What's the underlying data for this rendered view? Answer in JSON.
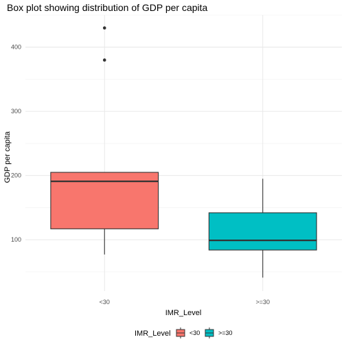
{
  "chart_data": {
    "type": "box",
    "title": "Box plot showing distribution of GDP per capita",
    "xlabel": "IMR_Level",
    "ylabel": "GDP per capita",
    "categories": [
      "<30",
      ">=30"
    ],
    "ylim": [
      20,
      450
    ],
    "yticks": [
      100,
      200,
      300,
      400
    ],
    "grid": true,
    "boxes": [
      {
        "category": "<30",
        "whisker_low": 77,
        "q1": 117,
        "median": 191,
        "q3": 205,
        "whisker_high": 205,
        "outliers": [
          380,
          430
        ],
        "color": "#F8766D"
      },
      {
        "category": ">=30",
        "whisker_low": 41,
        "q1": 84,
        "median": 99,
        "q3": 142,
        "whisker_high": 195,
        "outliers": [],
        "color": "#00BFC4"
      }
    ],
    "legend": {
      "title": "IMR_Level",
      "position": "bottom",
      "entries": [
        {
          "label": "<30",
          "color": "#F8766D"
        },
        {
          "label": ">=30",
          "color": "#00BFC4"
        }
      ]
    }
  }
}
